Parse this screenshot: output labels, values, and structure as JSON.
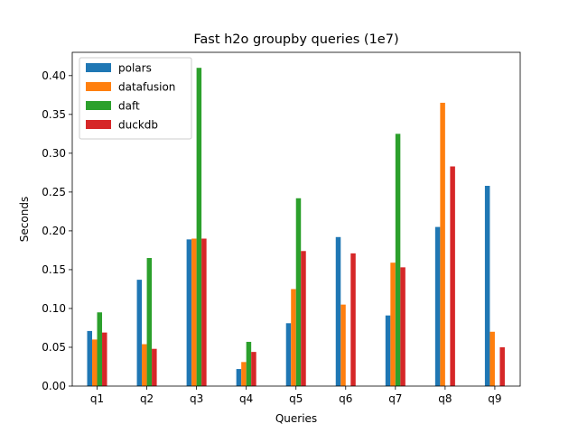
{
  "chart_data": {
    "type": "bar",
    "title": "Fast h2o groupby queries (1e7)",
    "xlabel": "Queries",
    "ylabel": "Seconds",
    "categories": [
      "q1",
      "q2",
      "q3",
      "q4",
      "q5",
      "q6",
      "q7",
      "q8",
      "q9"
    ],
    "ylim": [
      0,
      0.43
    ],
    "yticks": [
      0.0,
      0.05,
      0.1,
      0.15,
      0.2,
      0.25,
      0.3,
      0.35,
      0.4
    ],
    "ytick_labels": [
      "0.00",
      "0.05",
      "0.10",
      "0.15",
      "0.20",
      "0.25",
      "0.30",
      "0.35",
      "0.40"
    ],
    "grid": false,
    "legend_position": "top-left",
    "series": [
      {
        "name": "polars",
        "color": "#1f77b4",
        "values": [
          0.071,
          0.137,
          0.189,
          0.022,
          0.081,
          0.192,
          0.091,
          0.205,
          0.258
        ]
      },
      {
        "name": "datafusion",
        "color": "#ff7f0e",
        "values": [
          0.06,
          0.054,
          0.19,
          0.031,
          0.125,
          0.105,
          0.159,
          0.365,
          0.07
        ]
      },
      {
        "name": "daft",
        "color": "#2ca02c",
        "values": [
          0.095,
          0.165,
          0.41,
          0.057,
          0.242,
          0.0,
          0.325,
          0.0,
          0.0
        ]
      },
      {
        "name": "duckdb",
        "color": "#d62728",
        "values": [
          0.069,
          0.048,
          0.19,
          0.044,
          0.174,
          0.171,
          0.153,
          0.283,
          0.05
        ]
      }
    ]
  }
}
